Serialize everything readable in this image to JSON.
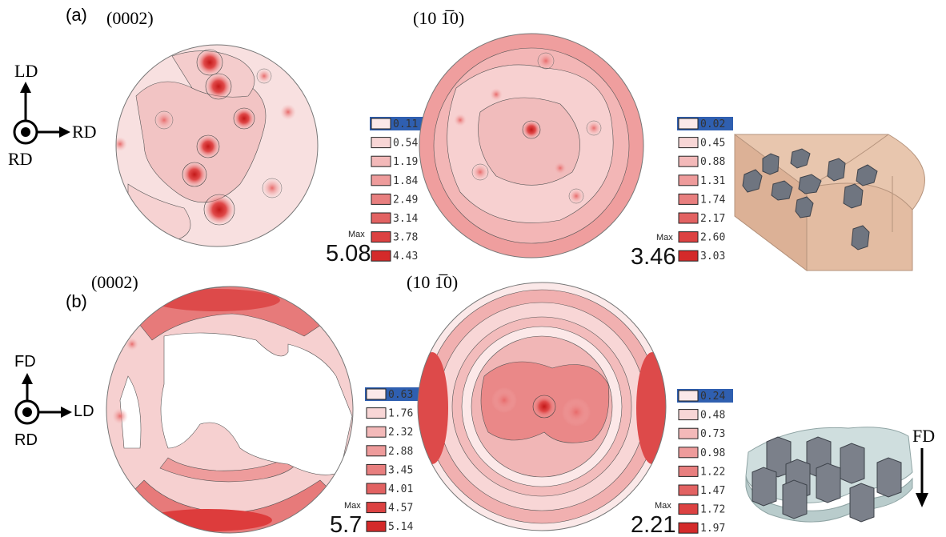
{
  "panels": [
    {
      "label": "(a)",
      "axes": {
        "up": "LD",
        "right": "RD",
        "center": "RD"
      },
      "poles": [
        {
          "plane": "(0002)",
          "max_label": "Max",
          "max_value": "5.08",
          "legend": [
            "0.11",
            "0.54",
            "1.19",
            "1.84",
            "2.49",
            "3.14",
            "3.78",
            "4.43"
          ]
        },
        {
          "plane": "(10 1̅0)",
          "max_label": "Max",
          "max_value": "3.46",
          "legend": [
            "0.02",
            "0.45",
            "0.88",
            "1.31",
            "1.74",
            "2.17",
            "2.60",
            "3.03"
          ]
        }
      ]
    },
    {
      "label": "(b)",
      "axes": {
        "up": "FD",
        "right": "LD",
        "center": "RD"
      },
      "poles": [
        {
          "plane": "(0002)",
          "max_label": "Max",
          "max_value": "5.7",
          "legend": [
            "0.63",
            "1.76",
            "2.32",
            "2.88",
            "3.45",
            "4.01",
            "4.57",
            "5.14"
          ]
        },
        {
          "plane": "(10 1̅0)",
          "max_label": "Max",
          "max_value": "2.21",
          "legend": [
            "0.24",
            "0.48",
            "0.73",
            "0.98",
            "1.22",
            "1.47",
            "1.72",
            "1.97"
          ]
        }
      ]
    }
  ],
  "schematic_b_arrow_label": "FD",
  "colors": {
    "legend_scale": [
      "#fbe9e9",
      "#f8d6d6",
      "#f3b9b9",
      "#ee9b9b",
      "#e87f7f",
      "#e26262",
      "#dc4242",
      "#d42a2a"
    ],
    "legend_highlight": "#2f5fb0",
    "pole_base": "#f7dada",
    "block_a": "#e0b89c",
    "block_b": "#cddcdc",
    "crystal": "#6f7580"
  }
}
